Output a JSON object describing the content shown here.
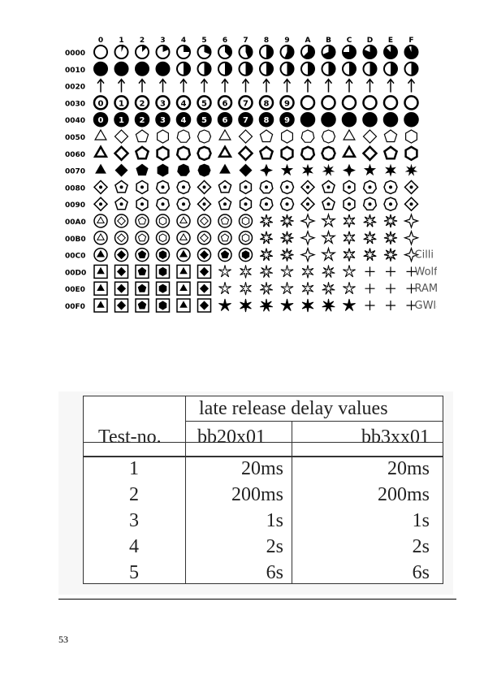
{
  "glyph_chart": {
    "columns": [
      "0",
      "1",
      "2",
      "3",
      "4",
      "5",
      "6",
      "7",
      "8",
      "9",
      "A",
      "B",
      "C",
      "D",
      "E",
      "F"
    ],
    "rows": [
      "0000",
      "0010",
      "0020",
      "0030",
      "0040",
      "0050",
      "0060",
      "0070",
      "0080",
      "0090",
      "00A0",
      "00B0",
      "00C0",
      "00D0",
      "00E0",
      "00F0"
    ],
    "side_words": [
      "Cilli",
      "Wolfgang",
      "RAMF",
      "GWlabs"
    ]
  },
  "table": {
    "group_header": "late release delay values",
    "col_header_test": "Test-no.",
    "col_header_a": "bb20x01",
    "col_header_b": "bb3xx01",
    "rows": [
      {
        "test": "1",
        "a": "20ms",
        "b": "20ms"
      },
      {
        "test": "2",
        "a": "200ms",
        "b": "200ms"
      },
      {
        "test": "3",
        "a": "1s",
        "b": "1s"
      },
      {
        "test": "4",
        "a": "2s",
        "b": "2s"
      },
      {
        "test": "5",
        "a": "6s",
        "b": "6s"
      }
    ]
  },
  "page_number": "53"
}
